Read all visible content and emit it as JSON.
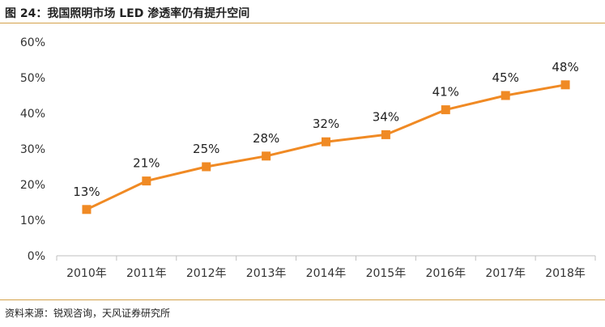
{
  "figure": {
    "title": "图 24：我国照明市场 LED 渗透率仍有提升空间",
    "source": "资料来源：锐观咨询，天风证券研究所"
  },
  "colors": {
    "accent": "#f08a24",
    "rule": "#d4a24a",
    "axis": "#bfbfbf"
  },
  "chart_data": {
    "type": "line",
    "categories": [
      "2010年",
      "2011年",
      "2012年",
      "2013年",
      "2014年",
      "2015年",
      "2016年",
      "2017年",
      "2018年"
    ],
    "series": [
      {
        "values": [
          13,
          21,
          25,
          28,
          32,
          34,
          41,
          45,
          48
        ],
        "labels": [
          "13%",
          "21%",
          "25%",
          "28%",
          "32%",
          "34%",
          "41%",
          "45%",
          "48%"
        ]
      }
    ],
    "ylim": [
      0,
      60
    ],
    "yticks": [
      0,
      10,
      20,
      30,
      40,
      50,
      60
    ],
    "ytick_labels": [
      "0%",
      "10%",
      "20%",
      "30%",
      "40%",
      "50%",
      "60%"
    ],
    "xlabel": "",
    "ylabel": "",
    "grid": false,
    "marker": "square"
  }
}
